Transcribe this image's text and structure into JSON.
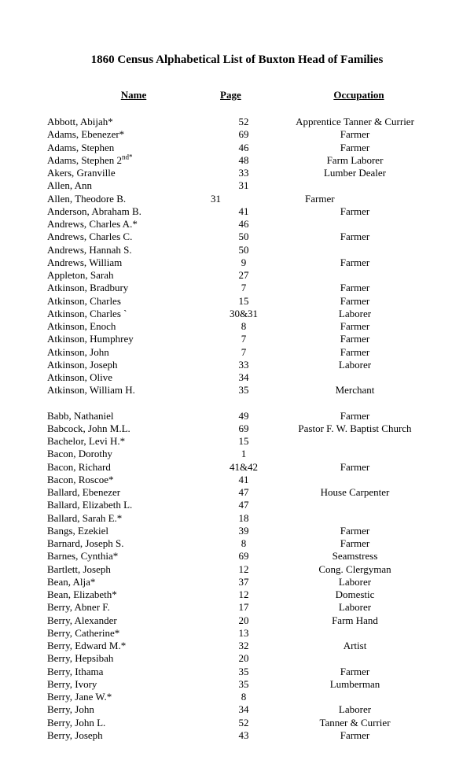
{
  "title": "1860 Census Alphabetical List of Buxton Head of Families",
  "headers": {
    "name": "Name",
    "page": "Page",
    "occ": "Occupation"
  },
  "rows": [
    {
      "name": "Abbott, Abijah*",
      "page": "52",
      "occ": "Apprentice Tanner & Currier"
    },
    {
      "name": "Adams, Ebenezer*",
      "page": "69",
      "occ": "Farmer"
    },
    {
      "name": "Adams, Stephen",
      "page": "46",
      "occ": "Farmer"
    },
    {
      "name": "Adams, Stephen 2",
      "sup": "nd*",
      "page": "48",
      "occ": "Farm Laborer"
    },
    {
      "name": "Akers, Granville",
      "page": "33",
      "occ": "Lumber Dealer"
    },
    {
      "name": "Allen, Ann",
      "page": "31",
      "occ": ""
    },
    {
      "name": "Allen, Theodore B.",
      "page": "31",
      "occ": "Farmer",
      "off": true
    },
    {
      "name": "Anderson, Abraham B.",
      "page": "41",
      "occ": "Farmer"
    },
    {
      "name": "Andrews, Charles A.*",
      "page": "46",
      "occ": ""
    },
    {
      "name": "Andrews, Charles C.",
      "page": "50",
      "occ": "Farmer"
    },
    {
      "name": "Andrews, Hannah S.",
      "page": "50",
      "occ": ""
    },
    {
      "name": "Andrews, William",
      "page": "9",
      "occ": "Farmer"
    },
    {
      "name": "Appleton, Sarah",
      "page": "27",
      "occ": ""
    },
    {
      "name": "Atkinson, Bradbury",
      "page": "7",
      "occ": "Farmer"
    },
    {
      "name": "Atkinson, Charles",
      "page": "15",
      "occ": "Farmer"
    },
    {
      "name": "Atkinson, Charles  `",
      "page": "30&31",
      "occ": "Laborer"
    },
    {
      "name": "Atkinson, Enoch",
      "page": "8",
      "occ": "Farmer"
    },
    {
      "name": "Atkinson, Humphrey",
      "page": "7",
      "occ": "Farmer"
    },
    {
      "name": "Atkinson, John",
      "page": "7",
      "occ": "Farmer"
    },
    {
      "name": "Atkinson, Joseph",
      "page": "33",
      "occ": "Laborer"
    },
    {
      "name": "Atkinson, Olive",
      "page": "34",
      "occ": ""
    },
    {
      "name": "Atkinson, William H.",
      "page": "35",
      "occ": "Merchant"
    },
    {
      "spacer": true
    },
    {
      "name": "Babb, Nathaniel",
      "page": "49",
      "occ": "Farmer"
    },
    {
      "name": "Babcock, John M.L.",
      "page": "69",
      "occ": "Pastor F. W. Baptist Church"
    },
    {
      "name": "Bachelor, Levi H.*",
      "page": "15",
      "occ": ""
    },
    {
      "name": "Bacon, Dorothy",
      "page": "1",
      "occ": ""
    },
    {
      "name": "Bacon, Richard",
      "page": "41&42",
      "occ": "Farmer"
    },
    {
      "name": "Bacon, Roscoe*",
      "page": "41",
      "occ": ""
    },
    {
      "name": "Ballard, Ebenezer",
      "page": "47",
      "occ": "House Carpenter"
    },
    {
      "name": "Ballard, Elizabeth L.",
      "page": "47",
      "occ": ""
    },
    {
      "name": "Ballard, Sarah E.*",
      "page": "18",
      "occ": ""
    },
    {
      "name": "Bangs, Ezekiel",
      "page": "39",
      "occ": "Farmer"
    },
    {
      "name": "Barnard, Joseph S.",
      "page": "8",
      "occ": "Farmer"
    },
    {
      "name": "Barnes, Cynthia*",
      "page": "69",
      "occ": "Seamstress"
    },
    {
      "name": "Bartlett, Joseph",
      "page": "12",
      "occ": "Cong. Clergyman"
    },
    {
      "name": "Bean, Alja*",
      "page": "37",
      "occ": "Laborer"
    },
    {
      "name": "Bean, Elizabeth*",
      "page": "12",
      "occ": "Domestic"
    },
    {
      "name": "Berry, Abner F.",
      "page": "17",
      "occ": "Laborer"
    },
    {
      "name": "Berry, Alexander",
      "page": "20",
      "occ": "Farm Hand"
    },
    {
      "name": "Berry, Catherine*",
      "page": "13",
      "occ": ""
    },
    {
      "name": "Berry, Edward M.*",
      "page": "32",
      "occ": "Artist"
    },
    {
      "name": "Berry, Hepsibah",
      "page": "20",
      "occ": ""
    },
    {
      "name": "Berry, Ithama",
      "page": "35",
      "occ": "Farmer"
    },
    {
      "name": "Berry, Ivory",
      "page": "35",
      "occ": "Lumberman"
    },
    {
      "name": "Berry, Jane W.*",
      "page": "8",
      "occ": ""
    },
    {
      "name": "Berry, John",
      "page": "34",
      "occ": "Laborer"
    },
    {
      "name": "Berry, John L.",
      "page": "52",
      "occ": "Tanner & Currier"
    },
    {
      "name": "Berry, Joseph",
      "page": "43",
      "occ": "Farmer"
    }
  ]
}
